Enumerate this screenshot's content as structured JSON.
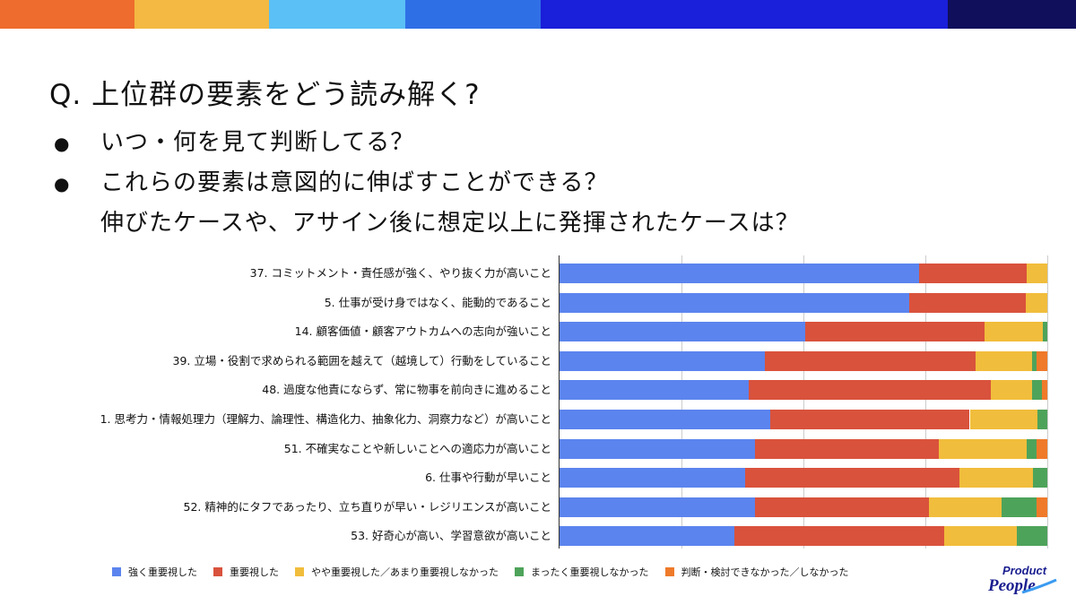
{
  "topbar_colors": [
    "#ee6c2d",
    "#f3b942",
    "#5bc0f5",
    "#2f6fe6",
    "#1a1fd9",
    "#0f0f5c"
  ],
  "title": "Q. 上位群の要素をどう読み解く?",
  "bullets": [
    {
      "marker": "●",
      "text": "いつ・何を見て判断してる？"
    },
    {
      "marker": "●",
      "text": "これらの要素は意図的に伸ばすことができる？"
    }
  ],
  "continuation": "伸びたケースや、アサイン後に想定以上に発揮されたケースは？",
  "logo_text": "Product People",
  "chart_data": {
    "type": "bar",
    "orientation": "horizontal-stacked-100",
    "xlim": [
      0,
      100
    ],
    "grid": true,
    "legend_position": "bottom",
    "categories": [
      "37. コミットメント・責任感が強く、やり抜く力が高いこと",
      "5. 仕事が受け身ではなく、能動的であること",
      "14. 顧客価値・顧客アウトカムへの志向が強いこと",
      "39. 立場・役割で求められる範囲を越えて（越境して）行動をしていること",
      "48. 過度な他責にならず、常に物事を前向きに進めること",
      "1. 思考力・情報処理力（理解力、論理性、構造化力、抽象化力、洞察力など）が高いこと",
      "51. 不確実なことや新しいことへの適応力が高いこと",
      "6. 仕事や行動が早いこと",
      "52. 精神的にタフであったり、立ち直りが早い・レジリエンスが高いこと",
      "53. 好奇心が高い、学習意欲が高いこと"
    ],
    "series": [
      {
        "name": "強く重要視した",
        "color": "#5b84ee",
        "values": [
          73.8,
          71.7,
          50.4,
          42.1,
          38.8,
          43.2,
          40.0,
          38.0,
          40.1,
          35.9
        ]
      },
      {
        "name": "重要視した",
        "color": "#d9523c",
        "values": [
          21.9,
          23.9,
          36.8,
          43.2,
          49.6,
          40.9,
          37.8,
          44.0,
          35.6,
          42.9
        ]
      },
      {
        "name": "やや重要視した／あまり重要視しなかった",
        "color": "#f1bd3c",
        "values": [
          4.3,
          4.4,
          11.8,
          11.6,
          8.5,
          13.8,
          18.0,
          15.0,
          14.9,
          15.0
        ]
      },
      {
        "name": "まったく重要視しなかった",
        "color": "#4ea35a",
        "values": [
          0,
          0,
          1.0,
          0.9,
          2.0,
          2.1,
          2.0,
          3.0,
          7.2,
          6.2
        ]
      },
      {
        "name": "判断・検討できなかった／しなかった",
        "color": "#ef7a2a",
        "values": [
          0,
          0,
          0,
          2.2,
          1.1,
          0,
          2.2,
          0,
          2.2,
          0
        ]
      }
    ]
  }
}
